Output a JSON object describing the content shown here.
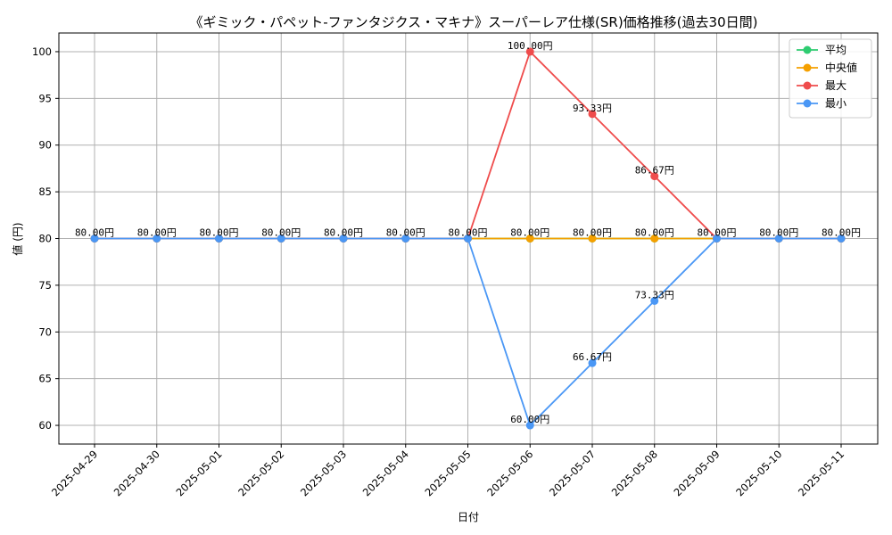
{
  "chart_data": {
    "type": "line",
    "title": "《ギミック・パペット-ファンタジクス・マキナ》スーパーレア仕様(SR)価格推移(過去30日間)",
    "xlabel": "日付",
    "ylabel": "値 (円)",
    "ylim": [
      58,
      102
    ],
    "yticks": [
      60,
      65,
      70,
      75,
      80,
      85,
      90,
      95,
      100
    ],
    "grid": true,
    "legend_position": "top-right",
    "categories": [
      "2025-04-29",
      "2025-04-30",
      "2025-05-01",
      "2025-05-02",
      "2025-05-03",
      "2025-05-04",
      "2025-05-05",
      "2025-05-06",
      "2025-05-07",
      "2025-05-08",
      "2025-05-09",
      "2025-05-10",
      "2025-05-11"
    ],
    "series": [
      {
        "name": "平均",
        "color": "#2ecc71",
        "values": [
          80,
          80,
          80,
          80,
          80,
          80,
          80,
          80,
          80,
          80,
          80,
          80,
          80
        ]
      },
      {
        "name": "中央値",
        "color": "#f5a000",
        "values": [
          80,
          80,
          80,
          80,
          80,
          80,
          80,
          80,
          80,
          80,
          80,
          80,
          80
        ]
      },
      {
        "name": "最大",
        "color": "#ef4c4c",
        "values": [
          80,
          80,
          80,
          80,
          80,
          80,
          80,
          100,
          93.33,
          86.67,
          80,
          80,
          80
        ]
      },
      {
        "name": "最小",
        "color": "#4a97f5",
        "values": [
          80,
          80,
          80,
          80,
          80,
          80,
          80,
          60,
          66.67,
          73.33,
          80,
          80,
          80
        ]
      }
    ],
    "data_label_suffix": "円"
  }
}
